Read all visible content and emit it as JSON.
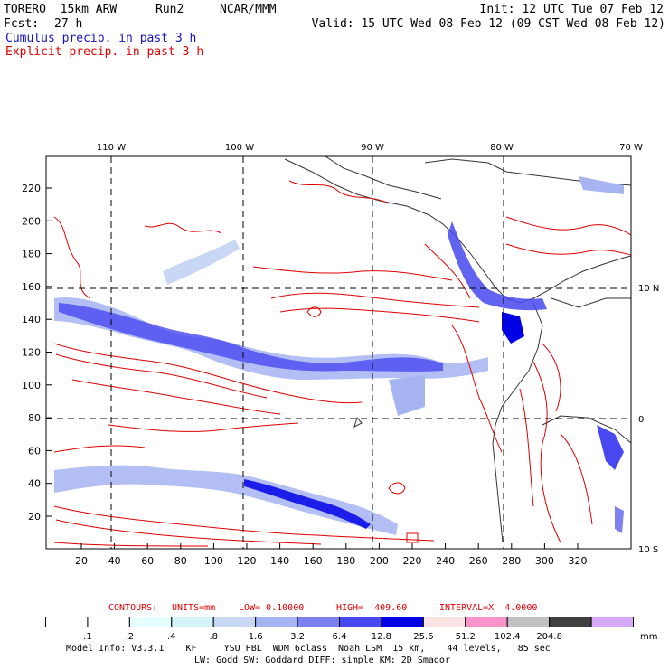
{
  "header": {
    "model": "TORERO  15km ARW",
    "run": "Run2",
    "org": "NCAR/MMM",
    "init": "Init: 12 UTC Tue 07 Feb 12",
    "fcst_label": "Fcst:",
    "fcst_value": "27 h",
    "valid": "Valid: 15 UTC Wed 08 Feb 12 (09 CST Wed 08 Feb 12)",
    "line_cumulus": "Cumulus precip. in past 3 h",
    "line_explicit": "Explicit precip. in past 3 h"
  },
  "map": {
    "lon_labels": [
      "110 W",
      "100 W",
      "90 W",
      "80 W",
      "70 W"
    ],
    "lat_labels": [
      "10 N",
      "0",
      "10 S"
    ],
    "y_ticks": [
      "20",
      "40",
      "60",
      "80",
      "100",
      "120",
      "140",
      "160",
      "180",
      "200",
      "220"
    ],
    "x_ticks": [
      "20",
      "40",
      "60",
      "80",
      "100",
      "120",
      "140",
      "160",
      "180",
      "200",
      "220",
      "240",
      "260",
      "280",
      "300",
      "320"
    ]
  },
  "contours": {
    "label": "CONTOURS:",
    "units": "UNITS=mm",
    "low": "LOW= 0.10000",
    "high": "HIGH=  409.60",
    "interval": "INTERVAL=X  4.0000"
  },
  "colorbar": {
    "unit": "mm",
    "labels": [
      ".1",
      ".2",
      ".4",
      ".8",
      "1.6",
      "3.2",
      "6.4",
      "12.8",
      "25.6",
      "51.2",
      "102.4",
      "204.8"
    ],
    "colors": [
      "#ffffff",
      "#ffffff",
      "#e6ffff",
      "#d3f4f9",
      "#c8d8f4",
      "#a6b4f2",
      "#7d80ef",
      "#4848f0",
      "#0000e6",
      "#fde4e4",
      "#f994c8",
      "#c0c0c0",
      "#404040",
      "#d8a8f8"
    ]
  },
  "footer": {
    "line1": "Model Info: V3.3.1    KF     YSU PBL  WDM 6class  Noah LSM  15 km,    44 levels,   85 sec",
    "line2": "LW: Godd SW: Goddard DIFF: simple KM: 2D Smagor"
  }
}
